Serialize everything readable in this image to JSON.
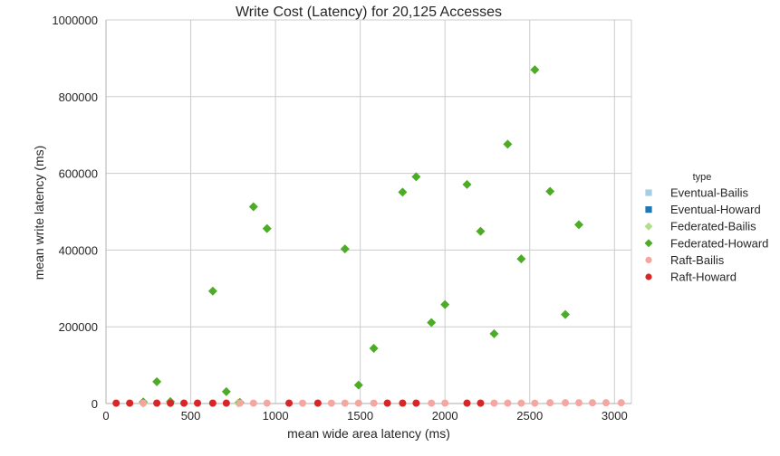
{
  "chart_data": {
    "type": "scatter",
    "title": "Write Cost (Latency) for 20,125 Accesses",
    "xlabel": "mean wide area latency (ms)",
    "ylabel": "mean write latency (ms)",
    "xlim": [
      0,
      3100
    ],
    "ylim": [
      0,
      1000000
    ],
    "xticks": [
      0,
      500,
      1000,
      1500,
      2000,
      2500,
      3000
    ],
    "yticks": [
      0,
      200000,
      400000,
      600000,
      800000,
      1000000
    ],
    "xtick_labels": [
      "0",
      "500",
      "1000",
      "1500",
      "2000",
      "2500",
      "3000"
    ],
    "ytick_labels": [
      "0",
      "200000",
      "400000",
      "600000",
      "800000",
      "1000000"
    ],
    "grid": true,
    "legend": {
      "title": "type",
      "placement": "right"
    },
    "series": [
      {
        "name": "Eventual-Bailis",
        "marker": "square",
        "color": "#a6cee3",
        "points": []
      },
      {
        "name": "Eventual-Howard",
        "marker": "square",
        "color": "#1f78b4",
        "points": []
      },
      {
        "name": "Federated-Bailis",
        "marker": "diamond",
        "color": "#b2df8a",
        "points": [
          [
            220,
            1000
          ],
          [
            380,
            1000
          ],
          [
            780,
            1500
          ]
        ]
      },
      {
        "name": "Federated-Howard",
        "marker": "diamond",
        "color": "#4dac26",
        "points": [
          [
            220,
            4000
          ],
          [
            300,
            57000
          ],
          [
            380,
            5000
          ],
          [
            630,
            293000
          ],
          [
            710,
            31000
          ],
          [
            790,
            3000
          ],
          [
            870,
            513000
          ],
          [
            950,
            456000
          ],
          [
            1410,
            403000
          ],
          [
            1490,
            48000
          ],
          [
            1580,
            144000
          ],
          [
            1750,
            551000
          ],
          [
            1830,
            591000
          ],
          [
            1920,
            211000
          ],
          [
            2000,
            258000
          ],
          [
            2130,
            571000
          ],
          [
            2210,
            449000
          ],
          [
            2290,
            182000
          ],
          [
            2370,
            676000
          ],
          [
            2450,
            377000
          ],
          [
            2530,
            870000
          ],
          [
            2620,
            553000
          ],
          [
            2710,
            232000
          ],
          [
            2790,
            466000
          ]
        ]
      },
      {
        "name": "Raft-Bailis",
        "marker": "circle",
        "color": "#f4a6a0",
        "points": [
          [
            60,
            1000
          ],
          [
            140,
            1000
          ],
          [
            220,
            1000
          ],
          [
            300,
            1000
          ],
          [
            380,
            1000
          ],
          [
            460,
            1000
          ],
          [
            540,
            1000
          ],
          [
            630,
            1000
          ],
          [
            710,
            1000
          ],
          [
            790,
            1000
          ],
          [
            870,
            1000
          ],
          [
            950,
            1000
          ],
          [
            1080,
            1000
          ],
          [
            1160,
            1000
          ],
          [
            1250,
            1000
          ],
          [
            1330,
            1000
          ],
          [
            1410,
            1000
          ],
          [
            1490,
            1000
          ],
          [
            1580,
            1000
          ],
          [
            1660,
            1000
          ],
          [
            1750,
            1000
          ],
          [
            1830,
            1000
          ],
          [
            1920,
            1000
          ],
          [
            2000,
            1000
          ],
          [
            2130,
            1000
          ],
          [
            2210,
            1000
          ],
          [
            2290,
            1000
          ],
          [
            2370,
            1000
          ],
          [
            2450,
            1000
          ],
          [
            2530,
            1000
          ],
          [
            2620,
            2000
          ],
          [
            2710,
            2000
          ],
          [
            2790,
            2000
          ],
          [
            2870,
            2000
          ],
          [
            2950,
            2000
          ],
          [
            3040,
            2000
          ]
        ]
      },
      {
        "name": "Raft-Howard",
        "marker": "circle",
        "color": "#d62728",
        "points": [
          [
            60,
            1000
          ],
          [
            140,
            1000
          ],
          [
            300,
            1000
          ],
          [
            380,
            1000
          ],
          [
            460,
            1000
          ],
          [
            540,
            1000
          ],
          [
            630,
            1000
          ],
          [
            710,
            1000
          ],
          [
            1080,
            1000
          ],
          [
            1250,
            1000
          ],
          [
            1660,
            1000
          ],
          [
            1750,
            1000
          ],
          [
            1830,
            1000
          ],
          [
            2130,
            1000
          ],
          [
            2210,
            1000
          ]
        ]
      }
    ]
  }
}
